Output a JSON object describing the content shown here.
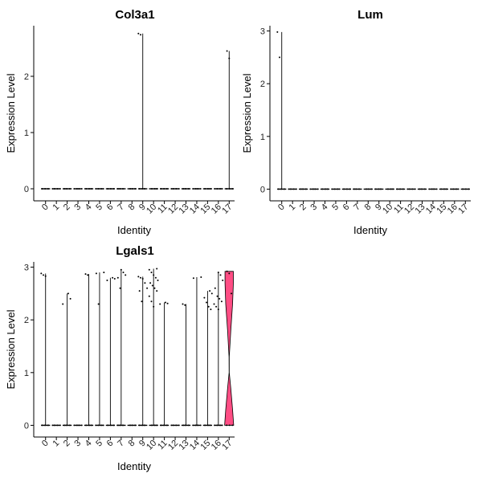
{
  "chart_data": [
    {
      "type": "violin",
      "title": "Col3a1",
      "xlabel": "Identity",
      "ylabel": "Expression Level",
      "categories": [
        "0",
        "1",
        "2",
        "3",
        "4",
        "5",
        "6",
        "7",
        "8",
        "9",
        "10",
        "11",
        "12",
        "13",
        "14",
        "15",
        "16",
        "17"
      ],
      "ylim": [
        -0.1,
        2.9
      ],
      "yticks": [
        0,
        1,
        2
      ],
      "max_values": [
        0,
        0,
        0,
        0,
        0,
        0,
        0,
        0,
        0,
        2.76,
        0,
        0,
        0,
        0,
        0,
        0,
        0,
        2.45
      ],
      "points": [
        {
          "cluster": "9",
          "values": [
            2.76,
            2.74
          ]
        },
        {
          "cluster": "17",
          "values": [
            2.45,
            2.32
          ]
        }
      ],
      "fill_color": "#ffffff"
    },
    {
      "type": "violin",
      "title": "Lum",
      "xlabel": "Identity",
      "ylabel": "Expression Level",
      "categories": [
        "0",
        "1",
        "2",
        "3",
        "4",
        "5",
        "6",
        "7",
        "8",
        "9",
        "10",
        "11",
        "12",
        "13",
        "14",
        "15",
        "16",
        "17"
      ],
      "ylim": [
        -0.1,
        3.1
      ],
      "yticks": [
        0,
        1,
        2,
        3
      ],
      "max_values": [
        2.98,
        0,
        0,
        0,
        0,
        0,
        0,
        0,
        0,
        0,
        0,
        0,
        0,
        0,
        0,
        0,
        0,
        0
      ],
      "points": [
        {
          "cluster": "0",
          "values": [
            2.98,
            2.5
          ]
        }
      ],
      "fill_color": "#ffffff"
    },
    {
      "type": "violin",
      "title": "Lgals1",
      "xlabel": "Identity",
      "ylabel": "Expression Level",
      "categories": [
        "0",
        "1",
        "2",
        "3",
        "4",
        "5",
        "6",
        "7",
        "8",
        "9",
        "10",
        "11",
        "12",
        "13",
        "14",
        "15",
        "16",
        "17"
      ],
      "ylim": [
        -0.1,
        3.1
      ],
      "yticks": [
        0,
        1,
        2,
        3
      ],
      "max_values": [
        2.88,
        0,
        2.5,
        0,
        2.87,
        2.9,
        2.8,
        2.95,
        0,
        2.82,
        2.97,
        2.33,
        0,
        2.3,
        2.81,
        2.55,
        2.9,
        2.92
      ],
      "points": [
        {
          "cluster": "0",
          "values": [
            2.88,
            2.85,
            2.83
          ]
        },
        {
          "cluster": "2",
          "values": [
            2.5,
            2.4,
            2.3
          ]
        },
        {
          "cluster": "4",
          "values": [
            2.87,
            2.85
          ]
        },
        {
          "cluster": "5",
          "values": [
            2.9,
            2.88,
            2.3
          ]
        },
        {
          "cluster": "6",
          "values": [
            2.8,
            2.78,
            2.75
          ]
        },
        {
          "cluster": "7",
          "values": [
            2.95,
            2.9,
            2.85,
            2.8,
            2.6
          ]
        },
        {
          "cluster": "9",
          "values": [
            2.82,
            2.8,
            2.78,
            2.7,
            2.6,
            2.55,
            2.35
          ]
        },
        {
          "cluster": "10",
          "values": [
            2.97,
            2.95,
            2.9,
            2.85,
            2.8,
            2.75,
            2.7,
            2.65,
            2.6,
            2.55,
            2.45,
            2.35,
            2.25
          ]
        },
        {
          "cluster": "11",
          "values": [
            2.33,
            2.31,
            2.3
          ]
        },
        {
          "cluster": "13",
          "values": [
            2.3,
            2.28
          ]
        },
        {
          "cluster": "14",
          "values": [
            2.81,
            2.79
          ]
        },
        {
          "cluster": "15",
          "values": [
            2.55,
            2.5,
            2.42,
            2.33,
            2.25,
            2.2
          ]
        },
        {
          "cluster": "16",
          "values": [
            2.9,
            2.85,
            2.75,
            2.6,
            2.45,
            2.4,
            2.35,
            2.3,
            2.25,
            2.2
          ]
        },
        {
          "cluster": "17",
          "values": [
            2.92,
            2.88,
            2.5
          ]
        }
      ],
      "fill_color": "#ff4d84",
      "density_clusters": [
        {
          "cluster": "17",
          "profile": [
            [
              0,
              1.0
            ],
            [
              0.3,
              0.75
            ],
            [
              0.7,
              0.35
            ],
            [
              1.0,
              0.02
            ],
            [
              1.3,
              0.03
            ],
            [
              1.8,
              0.35
            ],
            [
              2.3,
              0.75
            ],
            [
              2.7,
              0.92
            ],
            [
              2.92,
              0.92
            ]
          ]
        }
      ]
    }
  ]
}
